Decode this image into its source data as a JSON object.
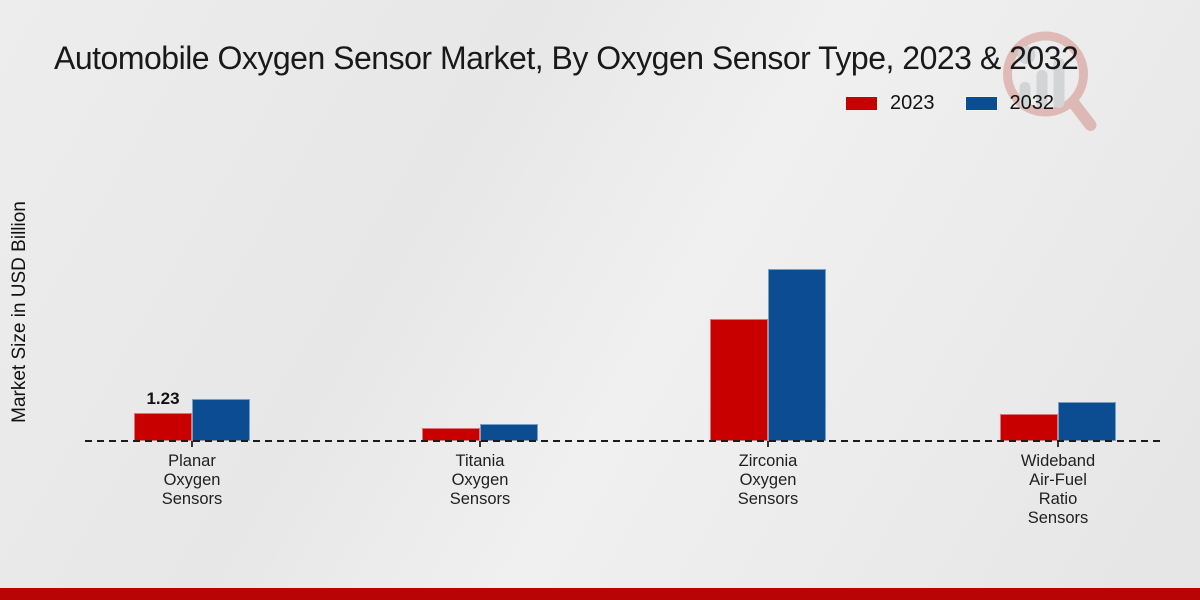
{
  "header": {
    "title": "Automobile Oxygen Sensor Market, By Oxygen Sensor Type, 2023 & 2032"
  },
  "y_axis": {
    "label": "Market Size in USD Billion"
  },
  "legend": {
    "position": "top-right",
    "items": [
      {
        "label": "2023",
        "color": "#c80000"
      },
      {
        "label": "2032",
        "color": "#0c4d92"
      }
    ]
  },
  "chart_data": {
    "type": "bar",
    "title": "Automobile Oxygen Sensor Market, By Oxygen Sensor Type, 2023 & 2032",
    "xlabel": "",
    "ylabel": "Market Size in USD Billion",
    "categories": [
      "Planar Oxygen Sensors",
      "Titania Oxygen Sensors",
      "Zirconia Oxygen Sensors",
      "Wideband Air-Fuel Ratio Sensors"
    ],
    "category_lines": [
      [
        "Planar",
        "Oxygen",
        "Sensors"
      ],
      [
        "Titania",
        "Oxygen",
        "Sensors"
      ],
      [
        "Zirconia",
        "Oxygen",
        "Sensors"
      ],
      [
        "Wideband",
        "Air-Fuel",
        "Ratio",
        "Sensors"
      ]
    ],
    "series": [
      {
        "name": "2023",
        "color": "#c80000",
        "values": [
          1.23,
          0.57,
          5.35,
          1.19
        ]
      },
      {
        "name": "2032",
        "color": "#0c4d92",
        "values": [
          1.85,
          0.76,
          7.55,
          1.72
        ]
      }
    ],
    "data_labels": [
      {
        "series_index": 0,
        "category_index": 0,
        "text": "1.23"
      }
    ],
    "ylim": [
      0,
      8
    ],
    "grid": false,
    "baseline_style": "dashed",
    "legend_position": "top-right"
  },
  "watermark": {
    "name": "market-research-logo"
  },
  "footer": {
    "bar_color": "#b80404"
  }
}
